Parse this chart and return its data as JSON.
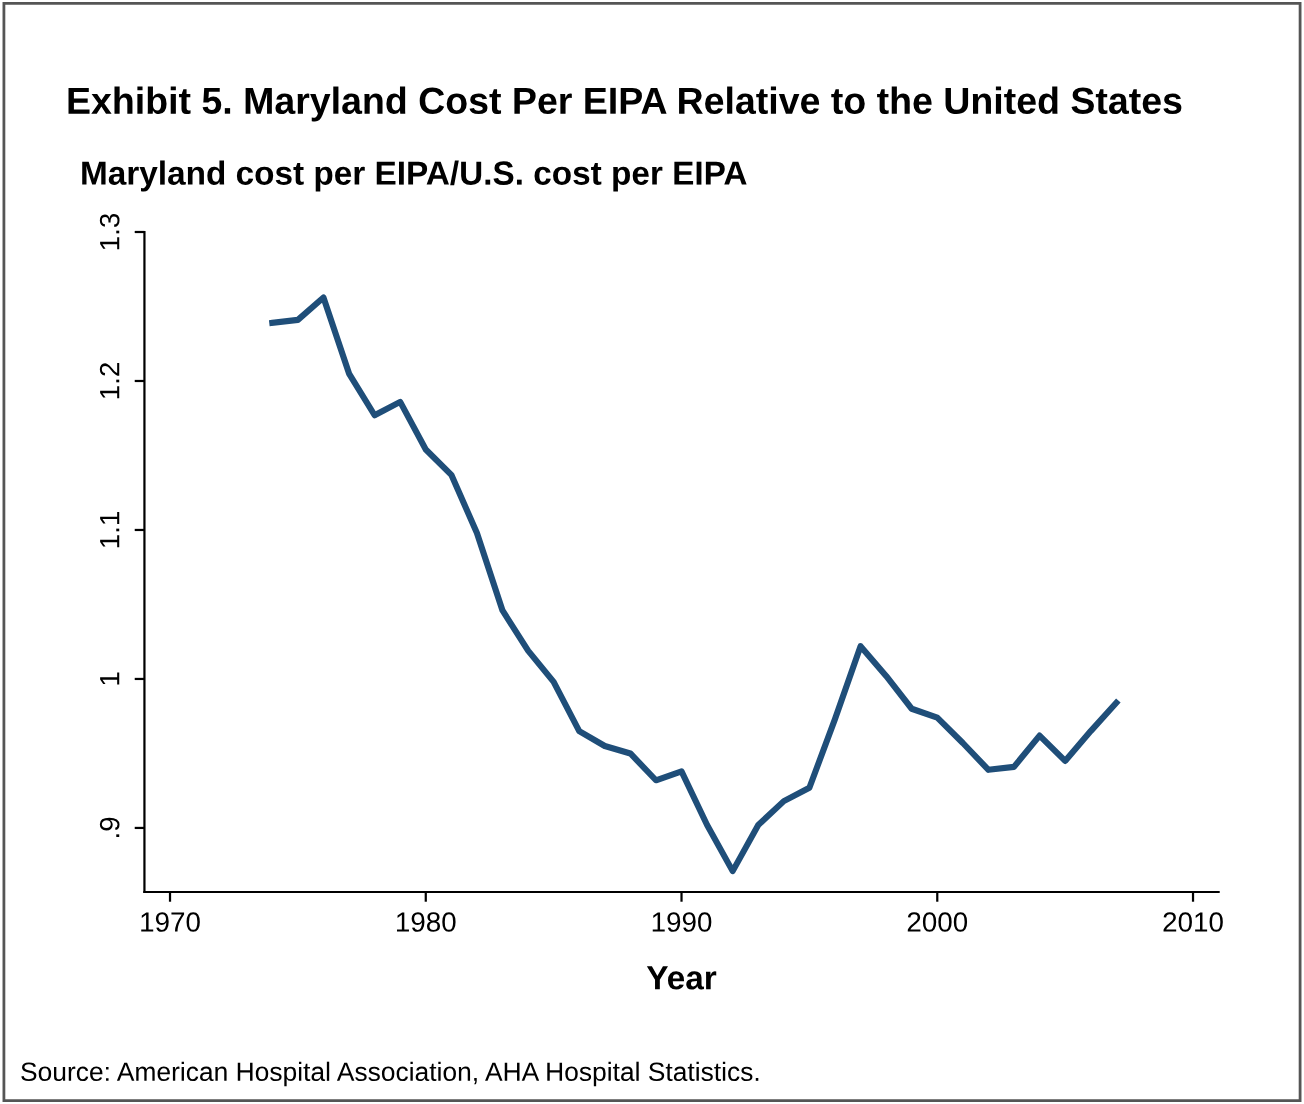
{
  "chart_data": {
    "type": "line",
    "title": "Exhibit 5. Maryland Cost Per EIPA Relative to the United States",
    "ylabel": "Maryland cost per EIPA/U.S. cost per EIPA",
    "xlabel": "Year",
    "annotations": [
      "Source: American Hospital Association, AHA Hospital Statistics."
    ],
    "x": [
      1974,
      1975,
      1976,
      1977,
      1978,
      1979,
      1980,
      1981,
      1982,
      1983,
      1984,
      1985,
      1986,
      1987,
      1988,
      1989,
      1990,
      1991,
      1992,
      1993,
      1994,
      1995,
      1996,
      1997,
      1998,
      1999,
      2000,
      2001,
      2002,
      2003,
      2004,
      2005,
      2006,
      2007
    ],
    "series": [
      {
        "color": "#1f4e79",
        "values": [
          1.239,
          1.241,
          1.256,
          1.205,
          1.177,
          1.186,
          1.154,
          1.137,
          1.098,
          1.046,
          1.019,
          0.998,
          0.965,
          0.955,
          0.95,
          0.932,
          0.938,
          0.902,
          0.871,
          0.902,
          0.918,
          0.927,
          0.973,
          1.022,
          1.002,
          0.98,
          0.974,
          0.957,
          0.939,
          0.941,
          0.962,
          0.945,
          0.965,
          0.984
        ]
      }
    ],
    "xlim": [
      1969,
      2011
    ],
    "ylim": [
      0.857,
      1.3
    ],
    "xticks": [
      1970,
      1980,
      1990,
      2000,
      2010
    ],
    "yticks": [
      1.3,
      1.2,
      1.1,
      {
        "value": 1,
        "label": "1"
      },
      {
        "value": 0.9,
        "label": ".9"
      }
    ],
    "grid": false,
    "legend": false,
    "marker": "none",
    "line_style": "solid"
  }
}
